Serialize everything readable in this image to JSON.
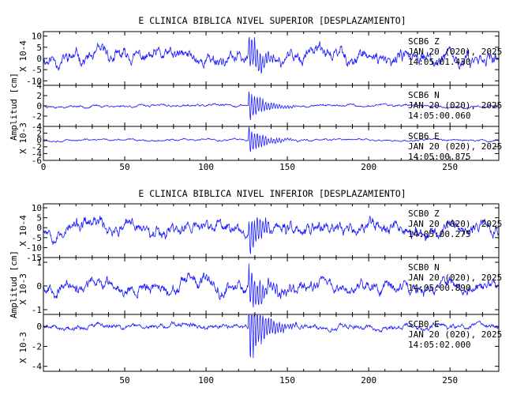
{
  "chart_data": [
    {
      "type": "line",
      "title": "E CLINICA BIBLICA NIVEL SUPERIOR [DESPLAZAMIENTO]",
      "ylabel": "Amplitud [cm]",
      "xlim": [
        0,
        280
      ],
      "x_ticks": [
        0,
        50,
        100,
        150,
        200,
        250
      ],
      "x_tick_labels": [
        "0",
        "50",
        "100",
        "150",
        "200",
        "250"
      ],
      "panels": [
        {
          "scale_label": "X 10-4",
          "ylim": [
            -12,
            12
          ],
          "y_ticks": [
            10,
            5,
            0,
            -5,
            -10
          ],
          "y_tick_labels": [
            "10",
            "5",
            "0",
            "-5",
            "-10"
          ],
          "station": "SCB6",
          "component": "Z",
          "date": "JAN 20 (020), 2025",
          "time": "14:05:01.430",
          "trace": {
            "amp": 4.0,
            "event": 12,
            "seed": 11
          }
        },
        {
          "scale_label": "X 10-3",
          "ylim": [
            -4,
            4
          ],
          "y_ticks": [
            4,
            2,
            0,
            -2,
            -4
          ],
          "y_tick_labels": [
            "4",
            "2",
            "0",
            "-2",
            "-4"
          ],
          "station": "SCB6",
          "component": "N",
          "date": "JAN 20 (020), 2025",
          "time": "14:05:00.060",
          "trace": {
            "amp": 0.3,
            "event": 3.6,
            "seed": 23
          }
        },
        {
          "scale_label": "X 10-3",
          "ylim": [
            -6,
            4
          ],
          "y_ticks": [
            4,
            2,
            0,
            -2,
            -4,
            -6
          ],
          "y_tick_labels": [
            "4",
            "2",
            "0",
            "-2",
            "-4",
            "-6"
          ],
          "station": "SCB6",
          "component": "E",
          "date": "JAN 20 (020), 2025",
          "time": "14:05:00.875",
          "trace": {
            "amp": 0.35,
            "event": 5,
            "seed": 37
          }
        }
      ]
    },
    {
      "type": "line",
      "title": "E CLINICA BIBLICA NIVEL INFERIOR [DESPLAZAMIENTO]",
      "ylabel": "Amplitud [cm]",
      "xlim": [
        0,
        280
      ],
      "x_ticks": [
        50,
        100,
        150,
        200,
        250
      ],
      "x_tick_labels": [
        "50",
        "100",
        "150",
        "200",
        "250"
      ],
      "panels": [
        {
          "scale_label": "X 10-4",
          "ylim": [
            -15,
            12
          ],
          "y_ticks": [
            10,
            5,
            0,
            -5,
            -10,
            -15
          ],
          "y_tick_labels": [
            "10",
            "5",
            "0",
            "-5",
            "-10",
            "-15"
          ],
          "station": "SCB0",
          "component": "Z",
          "date": "JAN 20 (020), 2025",
          "time": "14:05:00.275",
          "trace": {
            "amp": 4.5,
            "event": 11,
            "seed": 53
          }
        },
        {
          "scale_label": "X 10-3",
          "ylim": [
            -1.2,
            1.2
          ],
          "y_ticks": [
            1,
            0,
            -1
          ],
          "y_tick_labels": [
            "1",
            "0",
            "-1"
          ],
          "station": "SCB0",
          "component": "N",
          "date": "JAN 20 (020), 2025",
          "time": "14:05:00.890",
          "trace": {
            "amp": 0.35,
            "event": 1.1,
            "seed": 67
          }
        },
        {
          "scale_label": "X 10-3",
          "ylim": [
            -4.5,
            1.2
          ],
          "y_ticks": [
            0,
            -2,
            -4
          ],
          "y_tick_labels": [
            "0",
            "-2",
            "-4"
          ],
          "station": "SCB0",
          "component": "E",
          "date": "JAN 20 (020), 2025",
          "time": "14:05:02.000",
          "trace": {
            "amp": 0.35,
            "event": 4.5,
            "seed": 79
          }
        }
      ]
    }
  ]
}
